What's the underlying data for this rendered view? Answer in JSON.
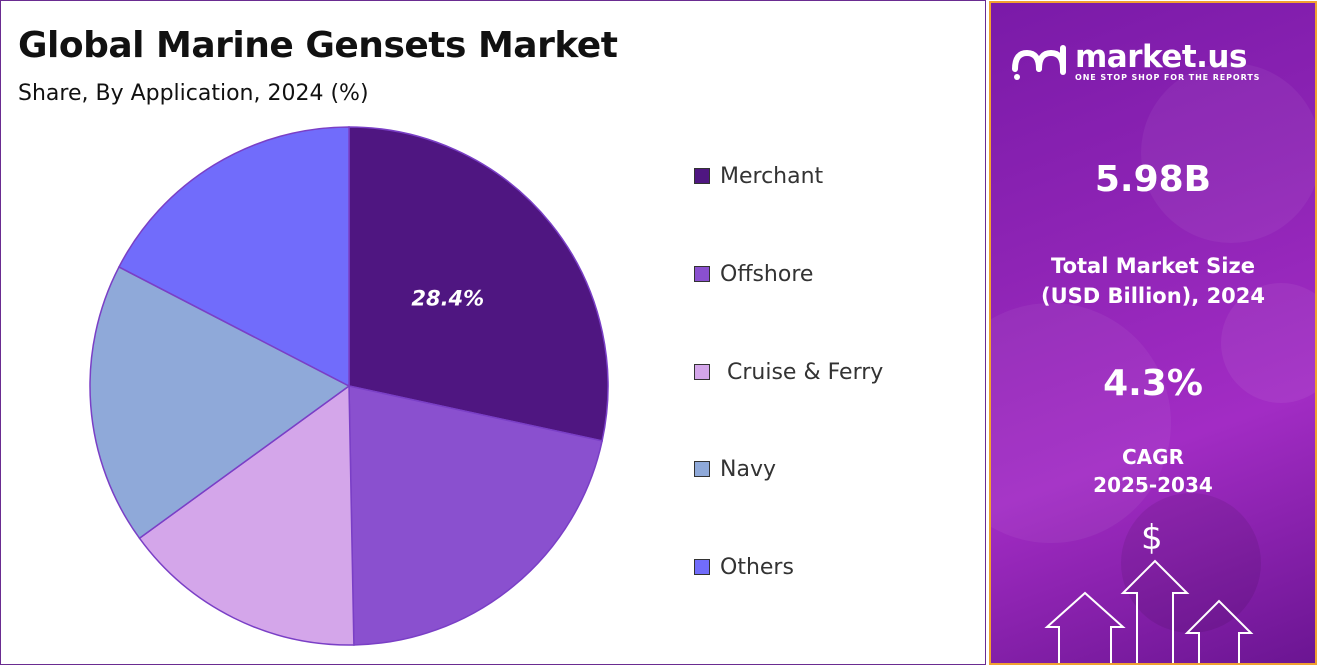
{
  "header": {
    "title": "Global Marine Gensets Market",
    "subtitle": "Share, By Application, 2024 (%)"
  },
  "chart_data": {
    "type": "pie",
    "title": "Global Marine Gensets Market",
    "subtitle": "Share, By Application, 2024 (%)",
    "categories": [
      "Merchant",
      "Offshore",
      "Cruise & Ferry",
      "Navy",
      "Others"
    ],
    "values": [
      28.4,
      21.3,
      15.3,
      17.6,
      17.4
    ],
    "data_labels": [
      "28.4%",
      "",
      "",
      "",
      ""
    ],
    "colors": [
      "#4f1681",
      "#8a50cf",
      "#d4a6ea",
      "#8fa9d9",
      "#716cfb"
    ],
    "legend_position": "right"
  },
  "legend": {
    "items": [
      {
        "label": "Merchant",
        "color": "#4f1681"
      },
      {
        "label": "Offshore",
        "color": "#8a50cf"
      },
      {
        "label": " Cruise & Ferry",
        "color": "#d4a6ea"
      },
      {
        "label": "Navy",
        "color": "#8fa9d9"
      },
      {
        "label": "Others",
        "color": "#716cfb"
      }
    ]
  },
  "side_panel": {
    "brand_name": "market.us",
    "brand_tagline": "ONE STOP SHOP FOR THE REPORTS",
    "market_size_value": "5.98B",
    "market_size_label_line1": "Total Market Size",
    "market_size_label_line2": "(USD Billion), 2024",
    "cagr_value": "4.3%",
    "cagr_label_line1": "CAGR",
    "cagr_label_line2": "2025-2034",
    "dollar_symbol": "$",
    "icons": [
      "market-us-logo-icon",
      "dollar-icon",
      "up-arrow-icon"
    ]
  }
}
